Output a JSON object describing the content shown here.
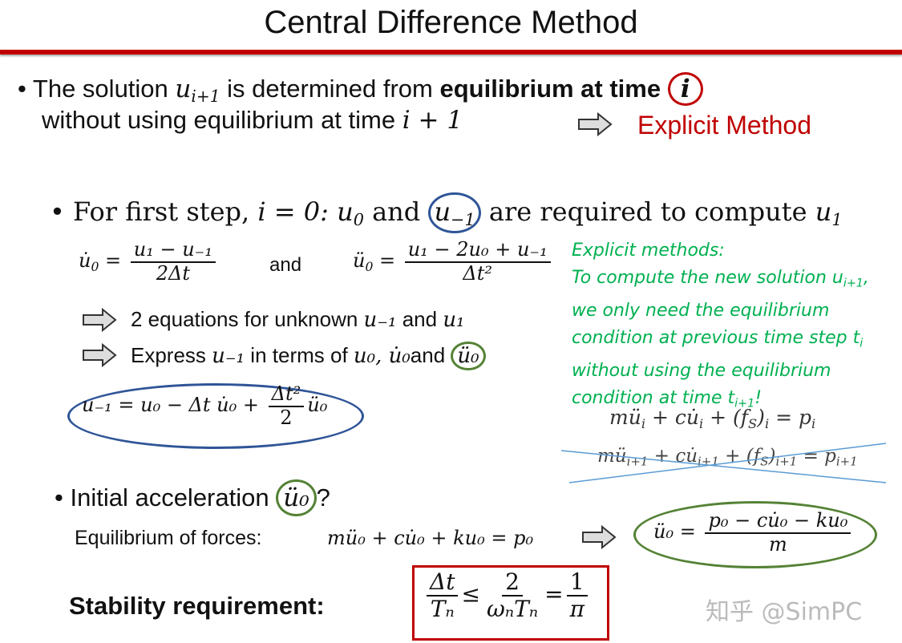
{
  "title": "Central Difference Method",
  "colors": {
    "rule": "#c00000",
    "accent_red": "#c00000",
    "green": "#00b050",
    "blue_circle": "#2f5597",
    "green_circle": "#548235"
  },
  "bullet1": {
    "line1_a": "The solution",
    "u": "u",
    "u_sub": "i+1",
    "line1_b": "is determined from",
    "bold": "equilibrium at time",
    "circled": "i",
    "line2_a": "without using equilibrium at time",
    "line2_m": "i + 1",
    "arrow_icon": "right-arrow-icon",
    "result": "Explicit Method"
  },
  "bullet2": {
    "a": "For first step,",
    "i0": "i = 0:",
    "u0": "u",
    "u0_sub": "0",
    "and": "and",
    "um1": "u",
    "um1_sub": "−1",
    "b": "are required to compute",
    "u1": "u",
    "u1_sub": "1"
  },
  "eq_row": {
    "lhs1": "u̇",
    "lhs1_sub": "0",
    "num1": "u₁ − u₋₁",
    "den1": "2Δt",
    "and": "and",
    "lhs2": "ü",
    "lhs2_sub": "0",
    "num2": "u₁ − 2u₀ + u₋₁",
    "den2": "Δt²"
  },
  "step1": {
    "text": "2 equations for unknown",
    "m1": "u₋₁",
    "and": "and",
    "m2": "u₁"
  },
  "step2": {
    "a": "Express",
    "m1": "u₋₁",
    "b": "in terms of",
    "m2": "u₀, u̇₀",
    "and": "and",
    "m3": "ü₀"
  },
  "boxed_eq": {
    "lhs": "u₋₁ = u₀ − Δt u̇₀ +",
    "num": "Δt²",
    "den": "2",
    "tail": "ü₀"
  },
  "note": {
    "lines": [
      "Explicit methods:",
      "To compute the new solution u",
      "we only need the equilibrium",
      "condition at previous time step t",
      "without using the equilibrium",
      "condition at time t"
    ],
    "sub1": "i+1",
    "tail1": ",",
    "sub3": "i",
    "sub5": "i+1",
    "tail5": "!"
  },
  "eq_i": "mü_i + cu̇_i + (f_S)_i = p_i",
  "eq_i_parts": {
    "a": "mü",
    "s1": "i",
    "b": " + cu̇",
    "s2": "i",
    "c": " + (f",
    "s3": "S",
    "d": ")",
    "s4": "i",
    "e": " = p",
    "s5": "i"
  },
  "eq_ip1_parts": {
    "a": "mü",
    "s1": "i+1",
    "b": " + cu̇",
    "s2": "i+1",
    "c": " + (f",
    "s3": "S",
    "d": ")",
    "s4": "i+1",
    "e": " = p",
    "s5": "i+1"
  },
  "bullet3": {
    "text": "Initial acceleration",
    "m": "ü₀",
    "q": "?"
  },
  "forces": {
    "label": "Equilibrium of forces:",
    "eq": "mü₀ + cu̇₀ + ku₀ = p₀",
    "res_lhs": "ü₀ =",
    "res_num": "p₀ − cu̇₀ − ku₀",
    "res_den": "m"
  },
  "stability": {
    "label": "Stability requirement:",
    "num1": "Δt",
    "den1": "Tₙ",
    "leq": "≤",
    "num2": "2",
    "den2": "ωₙTₙ",
    "eq": "=",
    "num3": "1",
    "den3": "π"
  },
  "watermark": "知乎 @SimPC"
}
